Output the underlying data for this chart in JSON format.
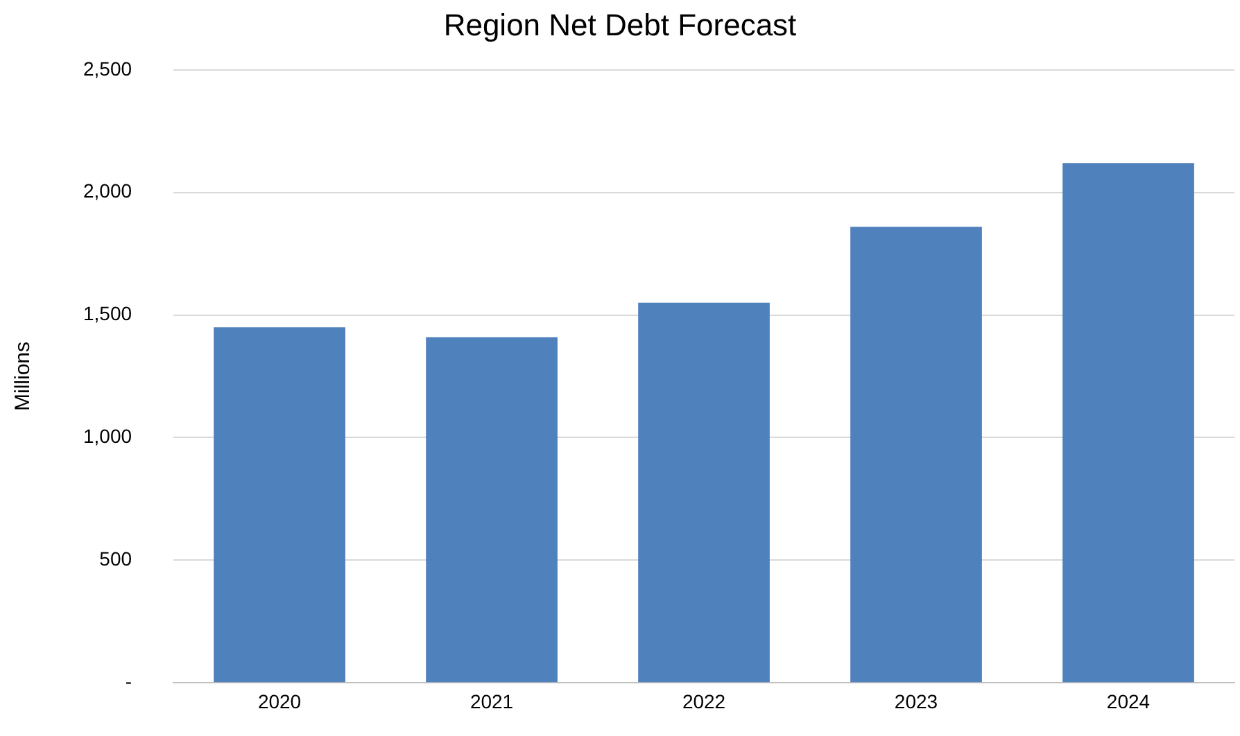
{
  "chart_data": {
    "type": "bar",
    "title": "Region Net Debt Forecast",
    "ylabel": "Millions",
    "categories": [
      "2020",
      "2021",
      "2022",
      "2023",
      "2024"
    ],
    "values": [
      1450,
      1410,
      1550,
      1860,
      2120
    ],
    "color": "#4f81bd",
    "ylim": [
      0,
      2500
    ],
    "yticks": [
      {
        "value": 0,
        "label": "-"
      },
      {
        "value": 500,
        "label": "500"
      },
      {
        "value": 1000,
        "label": "1,000"
      },
      {
        "value": 1500,
        "label": "1,500"
      },
      {
        "value": 2000,
        "label": "2,000"
      },
      {
        "value": 2500,
        "label": "2,500"
      }
    ],
    "grid": "y",
    "legend": false
  }
}
